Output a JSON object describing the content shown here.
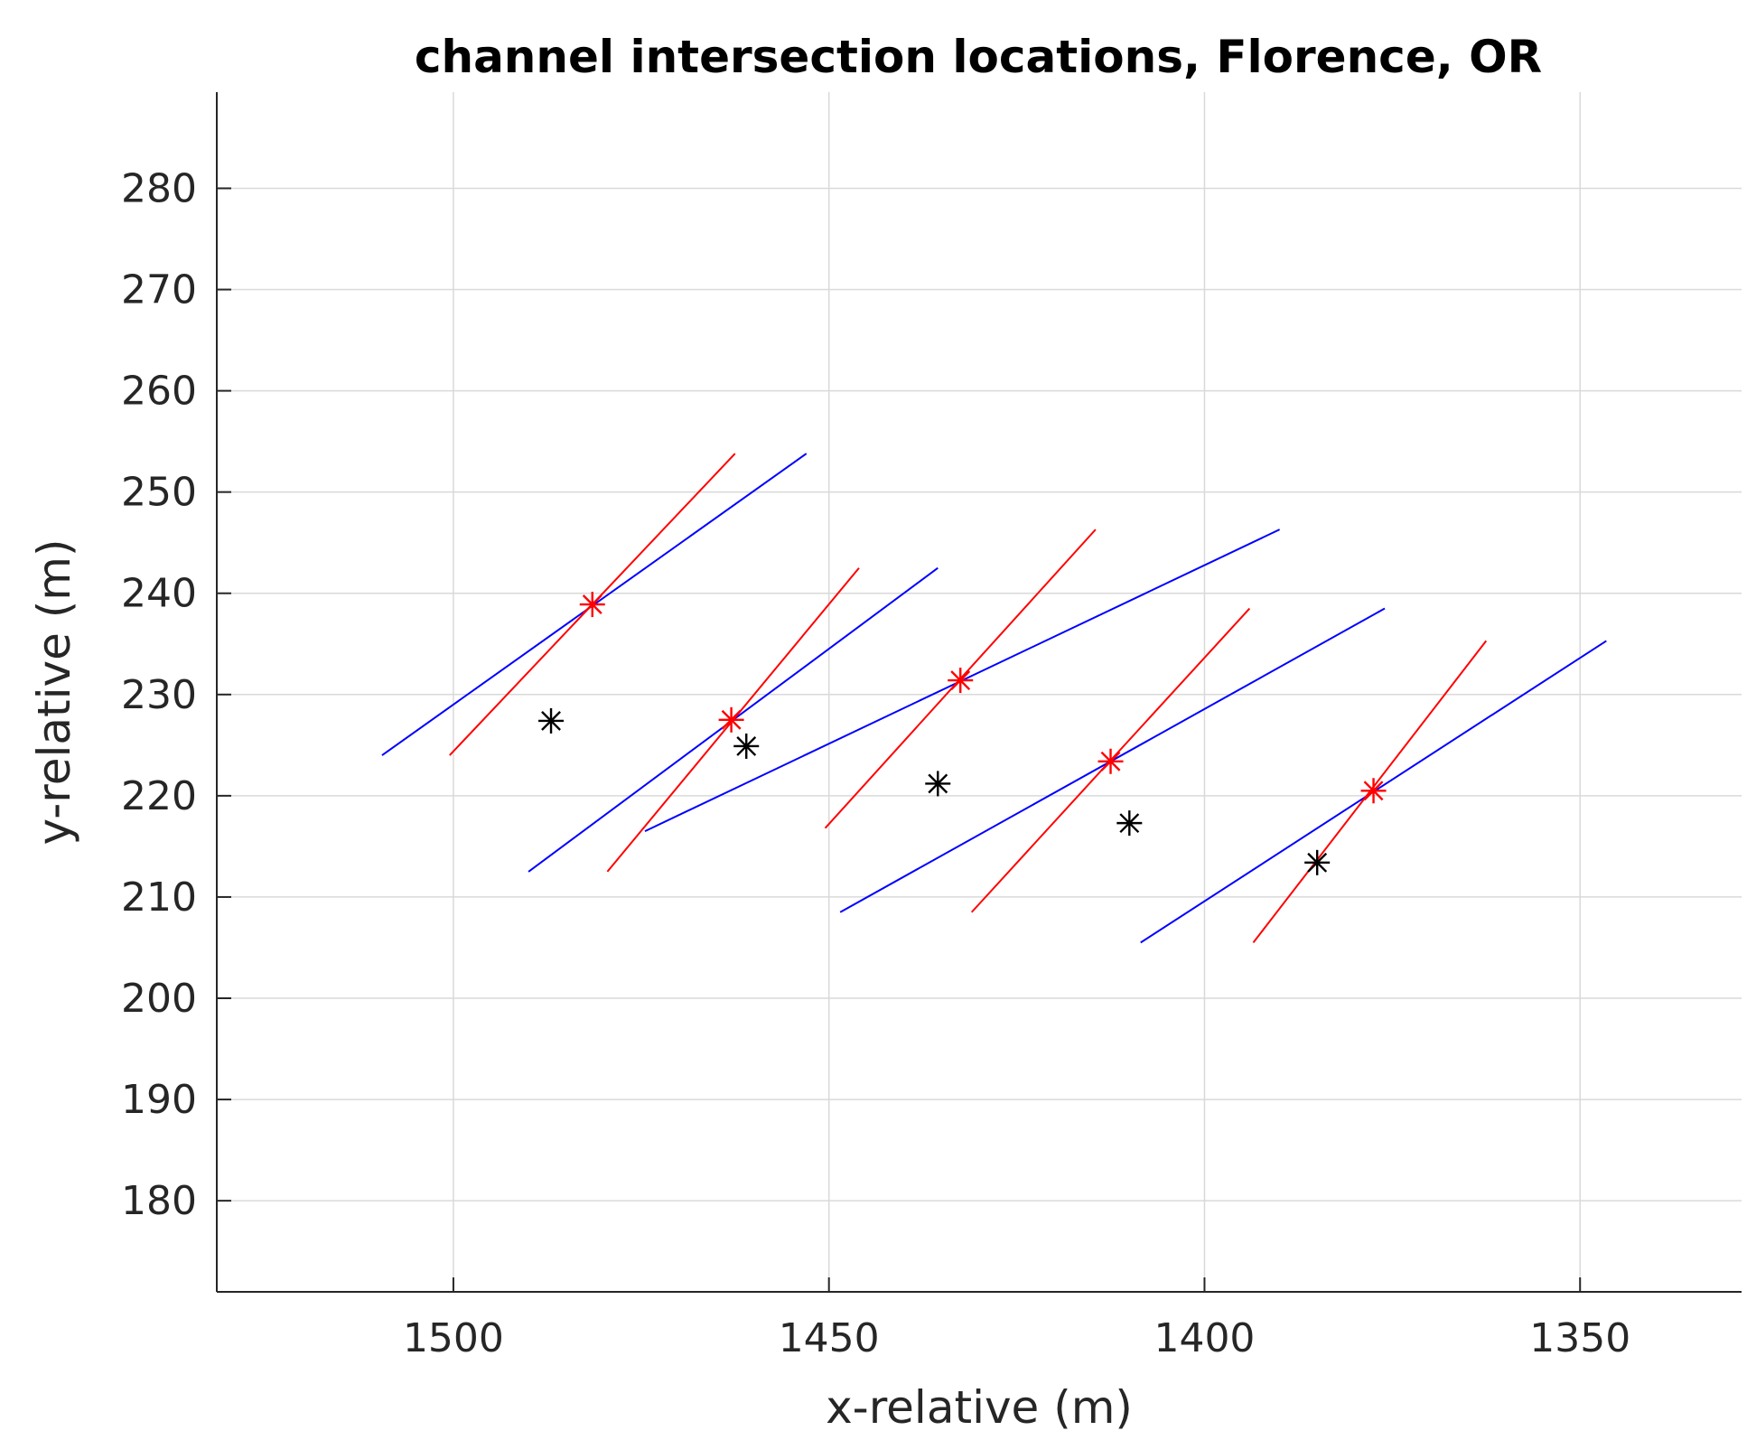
{
  "chart_data": {
    "type": "line",
    "title": "channel intersection locations, Florence, OR",
    "xlabel": "x-relative (m)",
    "ylabel": "y-relative (m)",
    "x_reversed": true,
    "xlim": [
      1531.5,
      1328.5
    ],
    "ylim": [
      171,
      289.5
    ],
    "xticks": [
      1500,
      1450,
      1400,
      1350
    ],
    "yticks": [
      180,
      190,
      200,
      210,
      220,
      230,
      240,
      250,
      260,
      270,
      280
    ],
    "grid": true,
    "colors": {
      "blue_lines": "#0000ff",
      "red_lines": "#ff0000",
      "black_markers": "#000000",
      "red_markers": "#ff0000"
    },
    "blue_lines": [
      {
        "x": [
          1509.5,
          1453.0
        ],
        "y": [
          224.0,
          253.8
        ]
      },
      {
        "x": [
          1490.0,
          1435.5
        ],
        "y": [
          212.5,
          242.5
        ]
      },
      {
        "x": [
          1474.5,
          1390.0
        ],
        "y": [
          216.5,
          246.3
        ]
      },
      {
        "x": [
          1448.5,
          1376.0
        ],
        "y": [
          208.5,
          238.5
        ]
      },
      {
        "x": [
          1408.5,
          1346.5
        ],
        "y": [
          205.5,
          235.3
        ]
      }
    ],
    "red_lines": [
      {
        "x": [
          1500.5,
          1462.5
        ],
        "y": [
          224.0,
          253.8
        ]
      },
      {
        "x": [
          1479.5,
          1446.0
        ],
        "y": [
          212.5,
          242.5
        ]
      },
      {
        "x": [
          1450.5,
          1414.5
        ],
        "y": [
          216.8,
          246.3
        ]
      },
      {
        "x": [
          1431.0,
          1394.0
        ],
        "y": [
          208.5,
          238.5
        ]
      },
      {
        "x": [
          1393.5,
          1362.5
        ],
        "y": [
          205.5,
          235.3
        ]
      }
    ],
    "red_markers": {
      "x": [
        1481.5,
        1463.0,
        1432.5,
        1412.5,
        1377.5
      ],
      "y": [
        238.9,
        227.5,
        231.4,
        223.4,
        220.5
      ]
    },
    "black_markers": {
      "x": [
        1487.0,
        1461.0,
        1435.5,
        1410.0,
        1385.0
      ],
      "y": [
        227.4,
        224.9,
        221.2,
        217.3,
        213.4
      ]
    }
  }
}
